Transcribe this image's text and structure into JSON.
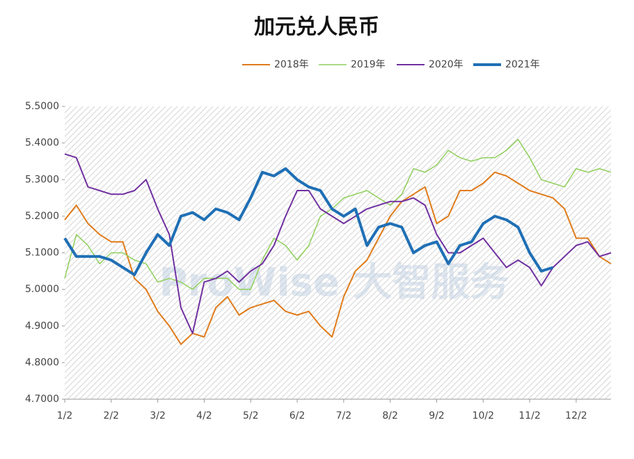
{
  "chart_data": {
    "type": "line",
    "title": "加元兑人民币",
    "watermark": "ProWise 大智服务",
    "categories": [
      "1/2",
      null,
      null,
      null,
      "2/2",
      null,
      null,
      null,
      "3/2",
      null,
      null,
      null,
      "4/2",
      null,
      null,
      null,
      "5/2",
      null,
      null,
      null,
      "6/2",
      null,
      null,
      null,
      "7/2",
      null,
      null,
      null,
      "8/2",
      null,
      null,
      null,
      "9/2",
      null,
      null,
      null,
      "10/2",
      null,
      null,
      null,
      "11/2",
      null,
      null,
      null,
      "12/2",
      null,
      null,
      null
    ],
    "series": [
      {
        "name": "2018年",
        "color": "#e07b1a",
        "width": 2,
        "values": [
          5.19,
          5.23,
          5.18,
          5.15,
          5.13,
          5.13,
          5.03,
          5.0,
          4.94,
          4.9,
          4.85,
          4.88,
          4.87,
          4.95,
          4.98,
          4.93,
          4.95,
          4.96,
          4.97,
          4.94,
          4.93,
          4.94,
          4.9,
          4.87,
          4.98,
          5.05,
          5.08,
          5.14,
          5.2,
          5.24,
          5.26,
          5.28,
          5.18,
          5.2,
          5.27,
          5.27,
          5.29,
          5.32,
          5.31,
          5.29,
          5.27,
          5.26,
          5.25,
          5.22,
          5.14,
          5.14,
          5.09,
          5.07
        ]
      },
      {
        "name": "2019年",
        "color": "#8fcf5a",
        "width": 1.5,
        "values": [
          5.03,
          5.15,
          5.12,
          5.07,
          5.1,
          5.1,
          5.08,
          5.07,
          5.02,
          5.03,
          5.02,
          5.0,
          5.03,
          5.03,
          5.03,
          5.0,
          5.0,
          5.08,
          5.14,
          5.12,
          5.08,
          5.12,
          5.2,
          5.22,
          5.25,
          5.26,
          5.27,
          5.25,
          5.23,
          5.26,
          5.33,
          5.32,
          5.34,
          5.38,
          5.36,
          5.35,
          5.36,
          5.36,
          5.38,
          5.41,
          5.36,
          5.3,
          5.29,
          5.28,
          5.33,
          5.32,
          5.33,
          5.32
        ]
      },
      {
        "name": "2020年",
        "color": "#7030a0",
        "width": 2,
        "values": [
          5.37,
          5.36,
          5.28,
          5.27,
          5.26,
          5.26,
          5.27,
          5.3,
          5.22,
          5.15,
          4.95,
          4.88,
          5.02,
          5.03,
          5.05,
          5.02,
          5.05,
          5.07,
          5.12,
          5.2,
          5.27,
          5.27,
          5.22,
          5.2,
          5.18,
          5.2,
          5.22,
          5.23,
          5.24,
          5.24,
          5.25,
          5.23,
          5.15,
          5.1,
          5.1,
          5.12,
          5.14,
          5.1,
          5.06,
          5.08,
          5.06,
          5.01,
          5.06,
          5.09,
          5.12,
          5.13,
          5.09,
          5.1
        ]
      },
      {
        "name": "2021年",
        "color": "#1f6fb5",
        "width": 4,
        "values": [
          5.14,
          5.09,
          5.09,
          5.09,
          5.08,
          5.06,
          5.04,
          5.1,
          5.15,
          5.12,
          5.2,
          5.21,
          5.19,
          5.22,
          5.21,
          5.19,
          5.25,
          5.32,
          5.31,
          5.33,
          5.3,
          5.28,
          5.27,
          5.22,
          5.2,
          5.22,
          5.12,
          5.17,
          5.18,
          5.17,
          5.1,
          5.12,
          5.13,
          5.07,
          5.12,
          5.13,
          5.18,
          5.2,
          5.19,
          5.17,
          5.1,
          5.05,
          5.06,
          null,
          null,
          null,
          null,
          null
        ]
      }
    ],
    "ylim": [
      4.7,
      5.5
    ],
    "yticks": [
      {
        "value": 4.7,
        "label": "4.7000"
      },
      {
        "value": 4.8,
        "label": "4.8000"
      },
      {
        "value": 4.9,
        "label": "4.9000"
      },
      {
        "value": 5.0,
        "label": "5.0000"
      },
      {
        "value": 5.1,
        "label": "5.1000"
      },
      {
        "value": 5.2,
        "label": "5.2000"
      },
      {
        "value": 5.3,
        "label": "5.3000"
      },
      {
        "value": 5.4,
        "label": "5.4000"
      },
      {
        "value": 5.5,
        "label": "5.5000"
      }
    ],
    "legend": "top",
    "background": "hatched"
  }
}
